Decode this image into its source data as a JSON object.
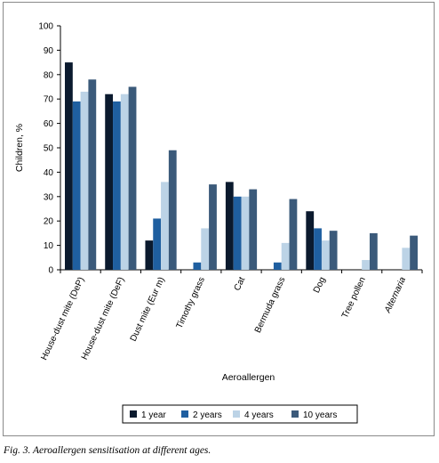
{
  "chart_data": {
    "type": "bar",
    "title": "",
    "xlabel": "Aeroallergen",
    "ylabel": "Children, %",
    "ylim": [
      0,
      100
    ],
    "yticks": [
      0,
      10,
      20,
      30,
      40,
      50,
      60,
      70,
      80,
      90,
      100
    ],
    "grid": false,
    "legend_position": "bottom",
    "categories": [
      {
        "label": "House-dust mite (DeP)",
        "italic": false
      },
      {
        "label": "House-dust mite (DeF)",
        "italic": false
      },
      {
        "label": "Dust mite (Eur m)",
        "italic": false
      },
      {
        "label": "Timothy grass",
        "italic": false
      },
      {
        "label": "Cat",
        "italic": false
      },
      {
        "label": "Bermuda grass",
        "italic": false
      },
      {
        "label": "Dog",
        "italic": false
      },
      {
        "label": "Tree pollen",
        "italic": false
      },
      {
        "label": "Alternaria",
        "italic": true
      }
    ],
    "series": [
      {
        "name": "1 year",
        "color": "#0b1a2e",
        "values": [
          85,
          72,
          12,
          0,
          36,
          0,
          24,
          0,
          0
        ]
      },
      {
        "name": "2 years",
        "color": "#1f5fa0",
        "values": [
          69,
          69,
          21,
          3,
          30,
          3,
          17,
          0,
          0
        ]
      },
      {
        "name": "4 years",
        "color": "#bcd3e6",
        "values": [
          73,
          72,
          36,
          17,
          30,
          11,
          12,
          4,
          9
        ]
      },
      {
        "name": "10 years",
        "color": "#3b5a7a",
        "values": [
          78,
          75,
          49,
          35,
          33,
          29,
          16,
          15,
          14
        ]
      }
    ]
  },
  "caption": "Fig. 3. Aeroallergen sensitisation at different ages."
}
